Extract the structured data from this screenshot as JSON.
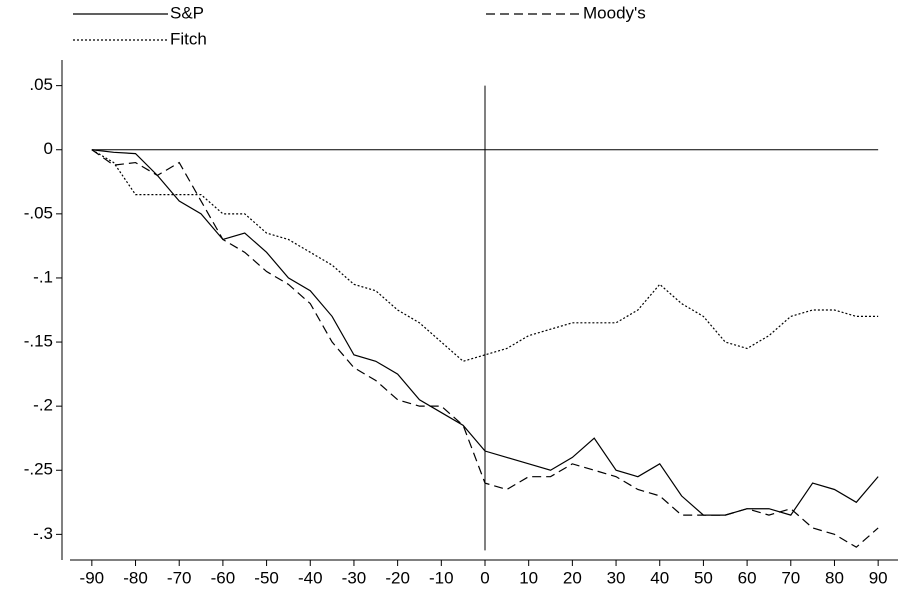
{
  "chart_data": {
    "type": "line",
    "x": [
      -90,
      -85,
      -80,
      -75,
      -70,
      -65,
      -60,
      -55,
      -50,
      -45,
      -40,
      -35,
      -30,
      -25,
      -20,
      -15,
      -10,
      -5,
      0,
      5,
      10,
      15,
      20,
      25,
      30,
      35,
      40,
      45,
      50,
      55,
      60,
      65,
      70,
      75,
      80,
      85,
      90
    ],
    "series": [
      {
        "name": "S&P",
        "color": "#000000",
        "dash": "solid",
        "values": [
          0,
          -0.002,
          -0.003,
          -0.02,
          -0.04,
          -0.05,
          -0.07,
          -0.065,
          -0.08,
          -0.1,
          -0.11,
          -0.13,
          -0.16,
          -0.165,
          -0.175,
          -0.195,
          -0.205,
          -0.215,
          -0.235,
          -0.24,
          -0.245,
          -0.25,
          -0.24,
          -0.225,
          -0.25,
          -0.255,
          -0.245,
          -0.27,
          -0.285,
          -0.285,
          -0.28,
          -0.28,
          -0.285,
          -0.26,
          -0.265,
          -0.275,
          -0.255
        ]
      },
      {
        "name": "Moody's",
        "color": "#000000",
        "dash": "dashed",
        "values": [
          0,
          -0.012,
          -0.01,
          -0.02,
          -0.01,
          -0.04,
          -0.07,
          -0.08,
          -0.095,
          -0.105,
          -0.12,
          -0.15,
          -0.17,
          -0.18,
          -0.195,
          -0.2,
          -0.2,
          -0.215,
          -0.26,
          -0.265,
          -0.255,
          -0.255,
          -0.245,
          -0.25,
          -0.255,
          -0.265,
          -0.27,
          -0.285,
          -0.285,
          -0.285,
          -0.28,
          -0.285,
          -0.28,
          -0.295,
          -0.3,
          -0.31,
          -0.295
        ]
      },
      {
        "name": "Fitch",
        "color": "#000000",
        "dash": "dotted",
        "values": [
          0,
          -0.01,
          -0.035,
          -0.035,
          -0.035,
          -0.035,
          -0.05,
          -0.05,
          -0.065,
          -0.07,
          -0.08,
          -0.09,
          -0.105,
          -0.11,
          -0.125,
          -0.135,
          -0.15,
          -0.165,
          -0.16,
          -0.155,
          -0.145,
          -0.14,
          -0.135,
          -0.135,
          -0.135,
          -0.125,
          -0.105,
          -0.12,
          -0.13,
          -0.15,
          -0.155,
          -0.145,
          -0.13,
          -0.125,
          -0.125,
          -0.13,
          -0.13
        ]
      }
    ],
    "xlim": [
      -95,
      95
    ],
    "ylim": [
      -0.32,
      0.07
    ],
    "xticks": [
      -90,
      -80,
      -70,
      -60,
      -50,
      -40,
      -30,
      -20,
      -10,
      0,
      10,
      20,
      30,
      40,
      50,
      60,
      70,
      80,
      90
    ],
    "yticks": [
      {
        "value": 0.05,
        "label": ".05"
      },
      0,
      {
        "value": -0.05,
        "label": "-.05"
      },
      {
        "value": -0.1,
        "label": "-.1"
      },
      {
        "value": -0.15,
        "label": "-.15"
      },
      {
        "value": -0.2,
        "label": "-.2"
      },
      {
        "value": -0.25,
        "label": "-.25"
      },
      {
        "value": -0.3,
        "label": "-.3"
      }
    ],
    "hline": 0,
    "vline": 0,
    "grid": false
  }
}
